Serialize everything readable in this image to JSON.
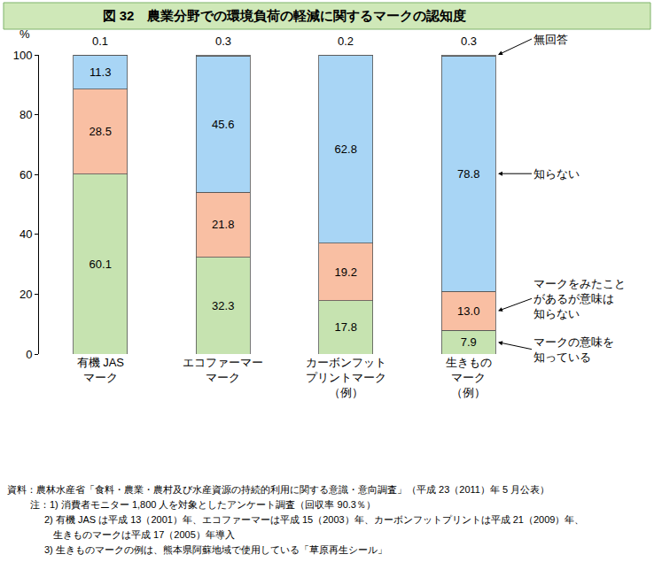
{
  "chart_data": {
    "type": "bar",
    "title": "図 32　農業分野での環境負荷の軽減に関するマークの認知度",
    "ylabel": "%",
    "categories": [
      "有機 JAS\nマーク",
      "エコファーマー\nマーク",
      "カーボンフット\nプリントマーク\n（例）",
      "生きもの\nマーク\n（例）"
    ],
    "stacked": true,
    "data_labels": true,
    "grid": false,
    "ylim": [
      0,
      100
    ],
    "yticks": [
      0,
      20,
      40,
      60,
      80,
      100
    ],
    "series": [
      {
        "name": "マークの意味を\n知っている",
        "color": "#c6e3b0",
        "values": [
          60.1,
          32.3,
          17.8,
          7.9
        ]
      },
      {
        "name": "マークをみたこと\nがあるが意味は\n知らない",
        "color": "#f9bfa3",
        "values": [
          28.5,
          21.8,
          19.2,
          13.0
        ],
        "value_labels": [
          "28.5",
          "21.8",
          "19.2",
          "13.0"
        ]
      },
      {
        "name": "知らない",
        "color": "#a8d5f5",
        "values": [
          11.3,
          45.6,
          62.8,
          78.8
        ]
      },
      {
        "name": "無回答",
        "color": "#ffffff",
        "values": [
          0.1,
          0.3,
          0.2,
          0.3
        ]
      }
    ],
    "notes": [
      "資料：農林水産省「食料・農業・農村及び水産資源の持続的利用に関する意識・意向調査」（平成 23（2011）年 5 月公表）",
      "注：1) 消費者モニター 1,800 人を対象としたアンケート調査（回収率 90.3％）",
      "2) 有機 JAS は平成 13（2001）年、エコファーマーは平成 15（2003）年、カーボンフットプリントは平成 21（2009）年、",
      "生きものマークは平成 17（2005）年導入",
      "3) 生きものマークの例は、熊本県阿蘇地域で使用している「草原再生シール」"
    ]
  }
}
